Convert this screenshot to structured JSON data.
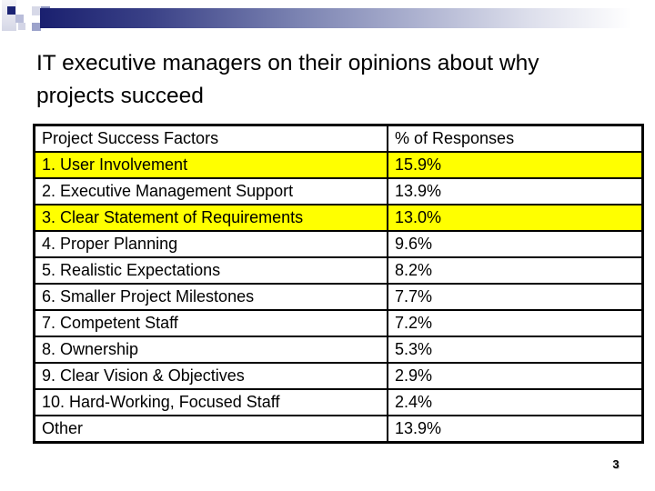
{
  "slide": {
    "title_lines": {
      "0": "IT executive managers on their opinions about why",
      "1": "projects succeed"
    },
    "page_number": "3"
  },
  "table": {
    "headers": {
      "0": "Project Success Factors",
      "1": "% of Responses"
    },
    "rows": [
      {
        "factor": "1. User Involvement",
        "pct": "15.9%",
        "highlight": true
      },
      {
        "factor": "2. Executive Management Support",
        "pct": "13.9%",
        "highlight": false
      },
      {
        "factor": "3. Clear Statement of Requirements",
        "pct": "13.0%",
        "highlight": true
      },
      {
        "factor": "4. Proper Planning",
        "pct": "9.6%",
        "highlight": false
      },
      {
        "factor": "5. Realistic Expectations",
        "pct": "8.2%",
        "highlight": false
      },
      {
        "factor": "6. Smaller Project Milestones",
        "pct": "7.7%",
        "highlight": false
      },
      {
        "factor": "7. Competent Staff",
        "pct": "7.2%",
        "highlight": false
      },
      {
        "factor": "8. Ownership",
        "pct": "5.3%",
        "highlight": false
      },
      {
        "factor": "9. Clear Vision & Objectives",
        "pct": "2.9%",
        "highlight": false
      },
      {
        "factor": "10. Hard-Working, Focused Staff",
        "pct": "2.4%",
        "highlight": false
      },
      {
        "factor": "Other",
        "pct": "13.9%",
        "highlight": false
      }
    ]
  },
  "colors": {
    "highlight_row": "#FFFF00",
    "accent_navy": "#1A206F",
    "table_border": "#000000"
  }
}
